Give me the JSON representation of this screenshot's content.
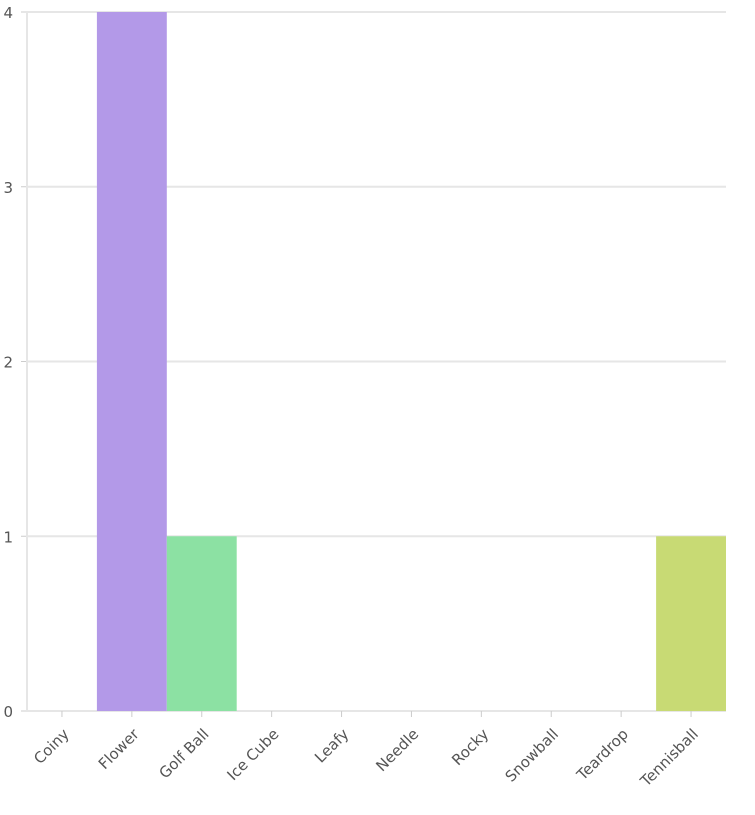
{
  "chart_data": {
    "type": "bar",
    "title": "",
    "xlabel": "",
    "ylabel": "",
    "categories": [
      "Coiny",
      "Flower",
      "Golf Ball",
      "Ice Cube",
      "Leafy",
      "Needle",
      "Rocky",
      "Snowball",
      "Teardrop",
      "Tennisball"
    ],
    "values": [
      0,
      4,
      1,
      0,
      0,
      0,
      0,
      0,
      0,
      1
    ],
    "colors": [
      "#b399e8",
      "#b399e8",
      "#8ce1a3",
      "#b399e8",
      "#b399e8",
      "#b399e8",
      "#b399e8",
      "#b399e8",
      "#b399e8",
      "#c8da74"
    ],
    "ylim": [
      0,
      4
    ],
    "yticks": [
      "0",
      "1",
      "2",
      "3",
      "4"
    ],
    "grid": true,
    "legend": "none"
  }
}
